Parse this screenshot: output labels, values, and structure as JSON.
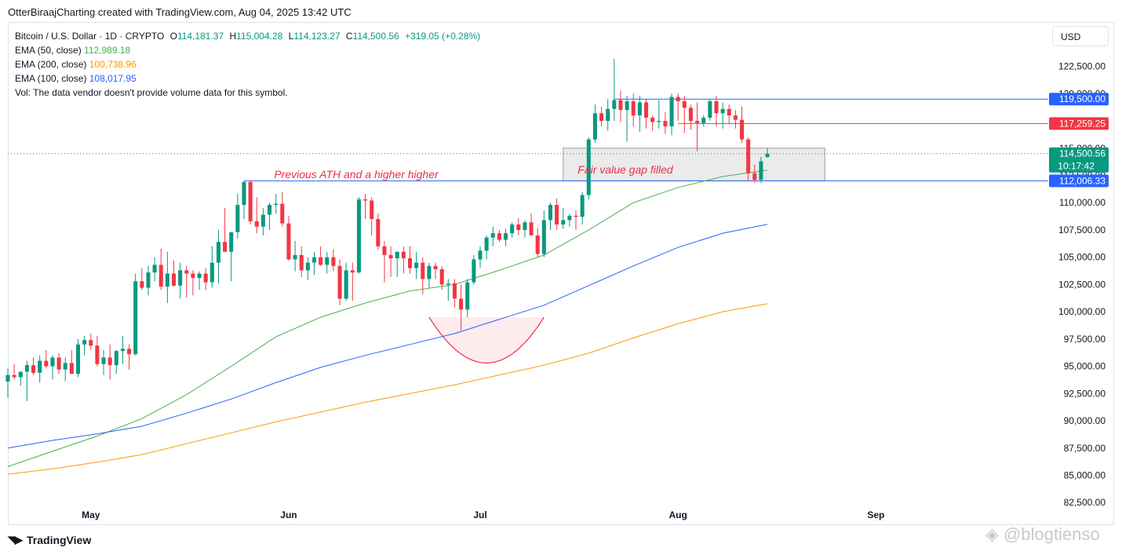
{
  "header": {
    "caption": "OtterBiraajCharting created with TradingView.com, Aug 04, 2025 13:42 UTC"
  },
  "legend": {
    "symbol": "Bitcoin / U.S. Dollar · 1D · CRYPTO",
    "open_label": "O",
    "open": "114,181.37",
    "high_label": "H",
    "high": "115,004.28",
    "low_label": "L",
    "low": "114,123.27",
    "close_label": "C",
    "close": "114,500.56",
    "change": "+319.05 (+0.28%)",
    "ema50_label": "EMA (50, close)",
    "ema50_value": "112,989.18",
    "ema50_color": "#4caf50",
    "ema200_label": "EMA (200, close)",
    "ema200_value": "100,738.96",
    "ema200_color": "#ff9800",
    "ema100_label": "EMA (100, close)",
    "ema100_value": "108,017.95",
    "ema100_color": "#2962ff",
    "vol_text": "Vol: The data vendor doesn't provide volume data for this symbol."
  },
  "toolbar": {
    "currency_button": "USD"
  },
  "branding": {
    "logo_text": "TradingView",
    "watermark": "@blogtienso"
  },
  "colors": {
    "up": "#089981",
    "down": "#f23645",
    "level_blue": "#2962ff",
    "level_red": "#f23645",
    "annotation_red": "#e8304a"
  },
  "chart_data": {
    "type": "candlestick",
    "title": "Bitcoin / U.S. Dollar · 1D · CRYPTO",
    "ylim": [
      80500,
      126500
    ],
    "y_ticks": [
      "125,000.00",
      "122,500.00",
      "120,000.00",
      "117,500.00",
      "115,000.00",
      "112,500.00",
      "110,000.00",
      "107,500.00",
      "105,000.00",
      "102,500.00",
      "100,000.00",
      "97,500.00",
      "95,000.00",
      "92,500.00",
      "90,000.00",
      "87,500.00",
      "85,000.00",
      "82,500.00"
    ],
    "x_ticks": [
      {
        "label": "May",
        "date": "2025-05-01"
      },
      {
        "label": "Jun",
        "date": "2025-06-01"
      },
      {
        "label": "Jul",
        "date": "2025-07-01"
      },
      {
        "label": "Aug",
        "date": "2025-08-01"
      },
      {
        "label": "Sep",
        "date": "2025-09-01"
      }
    ],
    "x_range": [
      "2025-04-18",
      "2025-09-28"
    ],
    "ohlc": [
      [
        "2025-04-18",
        93600,
        94800,
        92100,
        94200
      ],
      [
        "2025-04-19",
        94200,
        95200,
        93800,
        94000
      ],
      [
        "2025-04-20",
        94000,
        94500,
        93200,
        94500
      ],
      [
        "2025-04-21",
        94500,
        95500,
        91800,
        95100
      ],
      [
        "2025-04-22",
        95100,
        95800,
        94200,
        94400
      ],
      [
        "2025-04-23",
        94400,
        96000,
        93500,
        95500
      ],
      [
        "2025-04-24",
        95500,
        96500,
        94800,
        95000
      ],
      [
        "2025-04-25",
        95000,
        96000,
        93800,
        95800
      ],
      [
        "2025-04-26",
        95800,
        96200,
        94300,
        94700
      ],
      [
        "2025-04-27",
        94700,
        95800,
        93600,
        95300
      ],
      [
        "2025-04-28",
        95300,
        96500,
        94600,
        94300
      ],
      [
        "2025-04-29",
        94300,
        97500,
        94000,
        97000
      ],
      [
        "2025-04-30",
        97000,
        97800,
        96000,
        97400
      ],
      [
        "2025-05-01",
        97400,
        98000,
        96500,
        96900
      ],
      [
        "2025-05-02",
        96900,
        97800,
        95000,
        95200
      ],
      [
        "2025-05-03",
        95200,
        96500,
        94200,
        95800
      ],
      [
        "2025-05-04",
        95800,
        97000,
        93800,
        95100
      ],
      [
        "2025-05-05",
        95100,
        96500,
        94300,
        96400
      ],
      [
        "2025-05-06",
        96400,
        97800,
        95200,
        96600
      ],
      [
        "2025-05-07",
        96600,
        97000,
        94700,
        96100
      ],
      [
        "2025-05-08",
        96100,
        103500,
        96000,
        102800
      ],
      [
        "2025-05-09",
        102800,
        104000,
        102000,
        102200
      ],
      [
        "2025-05-10",
        102200,
        104200,
        101500,
        103600
      ],
      [
        "2025-05-11",
        103600,
        105000,
        102800,
        104300
      ],
      [
        "2025-05-12",
        104300,
        105800,
        102000,
        102300
      ],
      [
        "2025-05-13",
        102300,
        105500,
        100800,
        103500
      ],
      [
        "2025-05-14",
        103500,
        104700,
        102300,
        102400
      ],
      [
        "2025-05-15",
        102400,
        104500,
        101200,
        103800
      ],
      [
        "2025-05-16",
        103800,
        104200,
        101300,
        103500
      ],
      [
        "2025-05-17",
        103500,
        103800,
        101500,
        103100
      ],
      [
        "2025-05-18",
        103100,
        103700,
        102000,
        103500
      ],
      [
        "2025-05-19",
        103500,
        104000,
        102000,
        102700
      ],
      [
        "2025-05-20",
        102700,
        106000,
        102200,
        104500
      ],
      [
        "2025-05-21",
        104500,
        107500,
        102600,
        106400
      ],
      [
        "2025-05-22",
        106400,
        109500,
        105500,
        105500
      ],
      [
        "2025-05-23",
        105500,
        107000,
        102800,
        107300
      ],
      [
        "2025-05-24",
        107300,
        110800,
        106700,
        109800
      ],
      [
        "2025-05-25",
        109800,
        112000,
        108500,
        111900
      ],
      [
        "2025-05-26",
        111900,
        112000,
        108000,
        108300
      ],
      [
        "2025-05-27",
        108300,
        110500,
        107200,
        107800
      ],
      [
        "2025-05-28",
        107800,
        109500,
        107000,
        108900
      ],
      [
        "2025-05-29",
        108900,
        110000,
        107500,
        109800
      ],
      [
        "2025-05-30",
        109800,
        110800,
        109000,
        109900
      ],
      [
        "2025-05-31",
        109900,
        111000,
        107800,
        108100
      ],
      [
        "2025-06-01",
        108100,
        108800,
        104700,
        104800
      ],
      [
        "2025-06-02",
        104800,
        106500,
        103700,
        105200
      ],
      [
        "2025-06-03",
        105200,
        106000,
        103200,
        103800
      ],
      [
        "2025-06-04",
        103800,
        105000,
        102900,
        104500
      ],
      [
        "2025-06-05",
        104500,
        105500,
        103400,
        105000
      ],
      [
        "2025-06-06",
        105000,
        106000,
        104200,
        104300
      ],
      [
        "2025-06-07",
        104300,
        105500,
        103500,
        105000
      ],
      [
        "2025-06-08",
        105000,
        105700,
        103700,
        104200
      ],
      [
        "2025-06-09",
        104200,
        104800,
        100600,
        101200
      ],
      [
        "2025-06-10",
        101200,
        104500,
        101000,
        103800
      ],
      [
        "2025-06-11",
        103800,
        104500,
        101000,
        103600
      ],
      [
        "2025-06-12",
        103600,
        110500,
        103500,
        110300
      ],
      [
        "2025-06-13",
        110300,
        110800,
        108500,
        110200
      ],
      [
        "2025-06-14",
        110200,
        110500,
        107000,
        108500
      ],
      [
        "2025-06-15",
        108500,
        109000,
        105700,
        106000
      ],
      [
        "2025-06-16",
        106000,
        106500,
        102700,
        105200
      ],
      [
        "2025-06-17",
        105200,
        106000,
        103200,
        104900
      ],
      [
        "2025-06-18",
        104900,
        105500,
        103200,
        105500
      ],
      [
        "2025-06-19",
        105500,
        106000,
        103500,
        104900
      ],
      [
        "2025-06-20",
        104900,
        106000,
        103500,
        104000
      ],
      [
        "2025-06-21",
        104000,
        105500,
        103000,
        104500
      ],
      [
        "2025-06-22",
        104500,
        105000,
        101600,
        103000
      ],
      [
        "2025-06-23",
        103000,
        104500,
        102200,
        104200
      ],
      [
        "2025-06-24",
        104200,
        104500,
        103000,
        103900
      ],
      [
        "2025-06-25",
        103900,
        104200,
        102000,
        102500
      ],
      [
        "2025-06-26",
        102500,
        103000,
        101000,
        102600
      ],
      [
        "2025-06-27",
        102600,
        103000,
        100400,
        101200
      ],
      [
        "2025-06-28",
        101200,
        102500,
        98300,
        100200
      ],
      [
        "2025-06-29",
        100200,
        103000,
        99500,
        102700
      ],
      [
        "2025-06-30",
        102700,
        105200,
        102500,
        104800
      ],
      [
        "2025-07-01",
        104800,
        106000,
        104000,
        105600
      ],
      [
        "2025-07-02",
        105600,
        107000,
        104800,
        106800
      ],
      [
        "2025-07-03",
        106800,
        107800,
        106000,
        107200
      ],
      [
        "2025-07-04",
        107200,
        107500,
        106400,
        106600
      ],
      [
        "2025-07-05",
        106600,
        107600,
        106000,
        107200
      ],
      [
        "2025-07-06",
        107200,
        108200,
        106800,
        108000
      ],
      [
        "2025-07-07",
        108000,
        108600,
        107000,
        107500
      ],
      [
        "2025-07-08",
        107500,
        108400,
        106800,
        108200
      ],
      [
        "2025-07-09",
        108200,
        109000,
        107300,
        107000
      ],
      [
        "2025-07-10",
        107000,
        107700,
        105000,
        105300
      ],
      [
        "2025-07-11",
        105300,
        109300,
        105000,
        108400
      ],
      [
        "2025-07-12",
        108400,
        110000,
        107500,
        109800
      ],
      [
        "2025-07-13",
        109800,
        110400,
        107500,
        108000
      ],
      [
        "2025-07-14",
        108000,
        109500,
        107600,
        108400
      ],
      [
        "2025-07-15",
        108400,
        109000,
        107800,
        108800
      ],
      [
        "2025-07-16",
        108800,
        109300,
        107500,
        108700
      ],
      [
        "2025-07-17",
        108700,
        111000,
        108000,
        110700
      ],
      [
        "2025-07-18",
        110700,
        116000,
        110300,
        115800
      ],
      [
        "2025-07-19",
        115800,
        119000,
        115500,
        118200
      ],
      [
        "2025-07-20",
        118200,
        118800,
        117000,
        117500
      ],
      [
        "2025-07-21",
        117500,
        119500,
        116600,
        118600
      ],
      [
        "2025-07-22",
        118600,
        123200,
        117500,
        119400
      ],
      [
        "2025-07-23",
        119400,
        120300,
        117400,
        118500
      ],
      [
        "2025-07-24",
        118500,
        119800,
        115600,
        119300
      ],
      [
        "2025-07-25",
        119300,
        120000,
        117000,
        118000
      ],
      [
        "2025-07-26",
        118000,
        119800,
        116500,
        119200
      ],
      [
        "2025-07-27",
        119200,
        119500,
        116800,
        117800
      ],
      [
        "2025-07-28",
        117800,
        118000,
        116600,
        117400
      ],
      [
        "2025-07-29",
        117400,
        119400,
        116800,
        117500
      ],
      [
        "2025-07-30",
        117500,
        118300,
        116300,
        117000
      ],
      [
        "2025-07-31",
        117000,
        120000,
        116200,
        119700
      ],
      [
        "2025-08-01",
        119700,
        120000,
        117500,
        119300
      ],
      [
        "2025-08-02",
        119300,
        119800,
        116400,
        118700
      ],
      [
        "2025-08-03",
        118700,
        119000,
        116700,
        117500
      ],
      [
        "2025-08-04",
        117500,
        119200,
        114700,
        117300
      ],
      [
        "2025-08-05",
        117300,
        118000,
        117000,
        117800
      ],
      [
        "2025-08-06",
        117800,
        119500,
        117500,
        119300
      ],
      [
        "2025-08-07",
        119300,
        119800,
        117000,
        118200
      ],
      [
        "2025-08-08",
        118200,
        119200,
        116800,
        118600
      ],
      [
        "2025-08-09",
        118600,
        119000,
        117200,
        118000
      ],
      [
        "2025-08-10",
        118000,
        118500,
        116800,
        117600
      ],
      [
        "2025-08-11",
        117600,
        118800,
        115500,
        115800
      ],
      [
        "2025-08-12",
        115800,
        116000,
        112000,
        112700
      ],
      [
        "2025-08-13",
        112700,
        113500,
        111800,
        112100
      ],
      [
        "2025-08-14",
        112100,
        114200,
        111800,
        113800
      ],
      [
        "2025-08-15",
        114181.37,
        115004.28,
        114123.27,
        114500.56
      ]
    ],
    "series": [
      {
        "name": "EMA (50, close)",
        "color": "#4caf50",
        "points": [
          [
            "2025-04-18",
            85800
          ],
          [
            "2025-04-25",
            87200
          ],
          [
            "2025-05-02",
            88600
          ],
          [
            "2025-05-09",
            90200
          ],
          [
            "2025-05-16",
            92400
          ],
          [
            "2025-05-23",
            95000
          ],
          [
            "2025-05-30",
            97700
          ],
          [
            "2025-06-06",
            99500
          ],
          [
            "2025-06-13",
            100800
          ],
          [
            "2025-06-20",
            101900
          ],
          [
            "2025-06-27",
            102500
          ],
          [
            "2025-07-04",
            103800
          ],
          [
            "2025-07-11",
            105200
          ],
          [
            "2025-07-18",
            107500
          ],
          [
            "2025-07-25",
            110000
          ],
          [
            "2025-08-01",
            111400
          ],
          [
            "2025-08-08",
            112400
          ],
          [
            "2025-08-15",
            112989.18
          ]
        ]
      },
      {
        "name": "EMA (100, close)",
        "color": "#2962ff",
        "points": [
          [
            "2025-04-18",
            87500
          ],
          [
            "2025-04-25",
            88200
          ],
          [
            "2025-05-02",
            88800
          ],
          [
            "2025-05-09",
            89500
          ],
          [
            "2025-05-16",
            90700
          ],
          [
            "2025-05-23",
            92000
          ],
          [
            "2025-05-30",
            93500
          ],
          [
            "2025-06-06",
            94900
          ],
          [
            "2025-06-13",
            96000
          ],
          [
            "2025-06-20",
            97000
          ],
          [
            "2025-06-27",
            98000
          ],
          [
            "2025-07-04",
            99300
          ],
          [
            "2025-07-11",
            100600
          ],
          [
            "2025-07-18",
            102400
          ],
          [
            "2025-07-25",
            104200
          ],
          [
            "2025-08-01",
            105900
          ],
          [
            "2025-08-08",
            107200
          ],
          [
            "2025-08-15",
            108017.95
          ]
        ]
      },
      {
        "name": "EMA (200, close)",
        "color": "#ff9800",
        "points": [
          [
            "2025-04-18",
            85100
          ],
          [
            "2025-04-25",
            85600
          ],
          [
            "2025-05-02",
            86200
          ],
          [
            "2025-05-09",
            86900
          ],
          [
            "2025-05-16",
            87900
          ],
          [
            "2025-05-23",
            88900
          ],
          [
            "2025-05-30",
            89900
          ],
          [
            "2025-06-06",
            90800
          ],
          [
            "2025-06-13",
            91700
          ],
          [
            "2025-06-20",
            92500
          ],
          [
            "2025-06-27",
            93300
          ],
          [
            "2025-07-04",
            94200
          ],
          [
            "2025-07-11",
            95100
          ],
          [
            "2025-07-18",
            96200
          ],
          [
            "2025-07-25",
            97600
          ],
          [
            "2025-08-01",
            98900
          ],
          [
            "2025-08-08",
            100000
          ],
          [
            "2025-08-15",
            100738.96
          ]
        ]
      }
    ],
    "price_labels": [
      {
        "value": "119,500.00",
        "color": "#2962ff",
        "price": 119500
      },
      {
        "value": "117,259.25",
        "color": "#f23645",
        "price": 117259.25
      },
      {
        "value": "114,500.56",
        "sub": "10:17:42",
        "color": "#089981",
        "price": 114500.56
      },
      {
        "value": "112,006.33",
        "color": "#2962ff",
        "price": 112006.33
      }
    ],
    "levels": [
      {
        "price": 119500,
        "from": "2025-07-22",
        "color": "#2962ff"
      },
      {
        "price": 117259.25,
        "from": "2025-08-01",
        "color": "#f23645"
      },
      {
        "price": 112006.33,
        "from": "2025-05-25",
        "color": "#2962ff"
      }
    ],
    "current_price": 114500.56,
    "annotations": [
      {
        "text": "Previous ATH and a higher higher",
        "color": "#e8304a"
      },
      {
        "text": "Fair value gap filled",
        "color": "#e8304a"
      }
    ],
    "fvg_zone": {
      "from": "2025-07-14",
      "to": "2025-08-24",
      "low": 112006.33,
      "high": 115000
    },
    "cup": {
      "from": "2025-06-23",
      "bottom": "2025-07-02",
      "to": "2025-07-11",
      "rim": 99500,
      "bottom_price": 95300
    }
  }
}
